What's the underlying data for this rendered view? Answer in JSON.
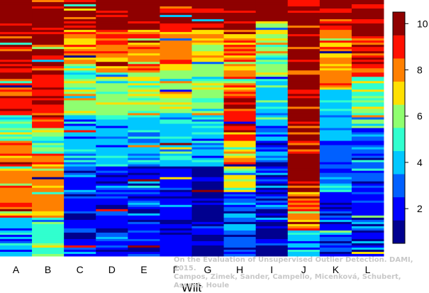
{
  "chart_data": {
    "type": "heatmap",
    "xlabel": "Wilt",
    "categories": [
      "A",
      "B",
      "C",
      "D",
      "E",
      "F",
      "G",
      "H",
      "I",
      "J",
      "K",
      "L"
    ],
    "colorbar": {
      "range": [
        0.5,
        10.5
      ],
      "ticks": [
        "2",
        "4",
        "6",
        "8",
        "10"
      ],
      "levels": [
        {
          "value": 1,
          "color": "#00008f"
        },
        {
          "value": 2,
          "color": "#0000ff"
        },
        {
          "value": 3,
          "color": "#0060ff"
        },
        {
          "value": 4,
          "color": "#00c8ff"
        },
        {
          "value": 5,
          "color": "#30ffcf"
        },
        {
          "value": 6,
          "color": "#8fff70"
        },
        {
          "value": 7,
          "color": "#ffe000"
        },
        {
          "value": 8,
          "color": "#ff8000"
        },
        {
          "value": 9,
          "color": "#ff1000"
        },
        {
          "value": 10,
          "color": "#8f0000"
        }
      ]
    },
    "column_profiles": [
      {
        "name": "A",
        "zones": [
          [
            0.25,
            10
          ],
          [
            0.45,
            9
          ],
          [
            0.55,
            5
          ],
          [
            0.85,
            8
          ],
          [
            1.0,
            4
          ]
        ]
      },
      {
        "name": "B",
        "zones": [
          [
            0.28,
            10
          ],
          [
            0.5,
            9
          ],
          [
            0.6,
            6
          ],
          [
            0.85,
            8
          ],
          [
            1.0,
            5
          ]
        ]
      },
      {
        "name": "C",
        "zones": [
          [
            0.12,
            10
          ],
          [
            0.25,
            8
          ],
          [
            0.45,
            6
          ],
          [
            0.65,
            4
          ],
          [
            1.0,
            2
          ]
        ]
      },
      {
        "name": "D",
        "zones": [
          [
            0.12,
            10
          ],
          [
            0.28,
            8
          ],
          [
            0.45,
            6
          ],
          [
            0.65,
            4
          ],
          [
            1.0,
            2
          ]
        ]
      },
      {
        "name": "E",
        "zones": [
          [
            0.12,
            10
          ],
          [
            0.28,
            8
          ],
          [
            0.45,
            6
          ],
          [
            0.65,
            4
          ],
          [
            1.0,
            2
          ]
        ]
      },
      {
        "name": "F",
        "zones": [
          [
            0.1,
            10
          ],
          [
            0.25,
            8
          ],
          [
            0.45,
            6
          ],
          [
            0.65,
            4
          ],
          [
            1.0,
            2
          ]
        ]
      },
      {
        "name": "G",
        "zones": [
          [
            0.12,
            10
          ],
          [
            0.25,
            7
          ],
          [
            0.45,
            6
          ],
          [
            0.65,
            4
          ],
          [
            1.0,
            1
          ]
        ]
      },
      {
        "name": "H",
        "zones": [
          [
            0.12,
            10
          ],
          [
            0.3,
            8
          ],
          [
            0.55,
            9
          ],
          [
            0.75,
            7
          ],
          [
            1.0,
            3
          ]
        ]
      },
      {
        "name": "I",
        "zones": [
          [
            0.08,
            10
          ],
          [
            0.3,
            6
          ],
          [
            0.55,
            4
          ],
          [
            0.75,
            2
          ],
          [
            1.0,
            1
          ]
        ]
      },
      {
        "name": "J",
        "zones": [
          [
            0.1,
            10
          ],
          [
            0.55,
            10
          ],
          [
            0.75,
            10
          ],
          [
            0.9,
            8
          ],
          [
            1.0,
            4
          ]
        ]
      },
      {
        "name": "K",
        "zones": [
          [
            0.1,
            10
          ],
          [
            0.35,
            8
          ],
          [
            0.55,
            4
          ],
          [
            0.75,
            3
          ],
          [
            1.0,
            2
          ]
        ]
      },
      {
        "name": "L",
        "zones": [
          [
            0.12,
            10
          ],
          [
            0.3,
            9
          ],
          [
            0.5,
            5
          ],
          [
            0.7,
            3
          ],
          [
            1.0,
            2
          ]
        ]
      }
    ]
  },
  "credit": {
    "line1": "On the Evaluation of Unsupervised Outlier Detection. DAMI, 2015.",
    "line2": "Campos, Zimek, Sander, Campello, Micenková, Schubert, Assent, Houle"
  }
}
